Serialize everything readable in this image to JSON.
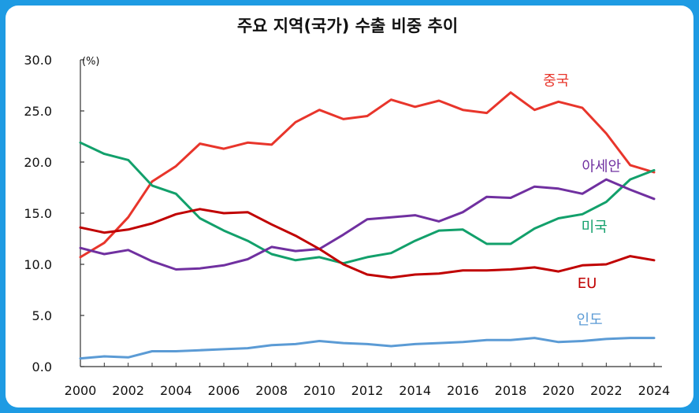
{
  "chart_data": {
    "type": "line",
    "title": "주요 지역(국가) 수출 비중 추이",
    "unit": "(%)",
    "xlabel": "",
    "ylabel": "",
    "ylim": [
      0,
      30
    ],
    "yticks": [
      "30.0",
      "25.0",
      "20.0",
      "15.0",
      "10.0",
      "5.0",
      "0.0"
    ],
    "ytick_values": [
      30,
      25,
      20,
      15,
      10,
      5,
      0
    ],
    "xticks": [
      "2000",
      "2002",
      "2004",
      "2006",
      "2008",
      "2010",
      "2012",
      "2014",
      "2016",
      "2018",
      "2020",
      "2022",
      "2024"
    ],
    "xtick_values": [
      2000,
      2002,
      2004,
      2006,
      2008,
      2010,
      2012,
      2014,
      2016,
      2018,
      2020,
      2022,
      2024
    ],
    "x": [
      2000,
      2001,
      2002,
      2003,
      2004,
      2005,
      2006,
      2007,
      2008,
      2009,
      2010,
      2011,
      2012,
      2013,
      2014,
      2015,
      2016,
      2017,
      2018,
      2019,
      2020,
      2021,
      2022,
      2023,
      2024
    ],
    "grid": false,
    "legend": "inline labels",
    "series": [
      {
        "name": "중국",
        "color": "#e8352b",
        "values": [
          10.7,
          12.1,
          14.6,
          18.1,
          19.6,
          21.8,
          21.3,
          21.9,
          21.7,
          23.9,
          25.1,
          24.2,
          24.5,
          26.1,
          25.4,
          26.0,
          25.1,
          24.8,
          26.8,
          25.1,
          25.9,
          25.3,
          22.8,
          19.7,
          19.0
        ]
      },
      {
        "name": "미국",
        "color": "#12a06b",
        "values": [
          21.9,
          20.8,
          20.2,
          17.7,
          16.9,
          14.5,
          13.3,
          12.3,
          11.0,
          10.4,
          10.7,
          10.1,
          10.7,
          11.1,
          12.3,
          13.3,
          13.4,
          12.0,
          12.0,
          13.5,
          14.5,
          14.9,
          16.1,
          18.3,
          19.2
        ]
      },
      {
        "name": "아세안",
        "color": "#7030a0",
        "values": [
          11.6,
          11.0,
          11.4,
          10.3,
          9.5,
          9.6,
          9.9,
          10.5,
          11.7,
          11.3,
          11.5,
          12.9,
          14.4,
          14.6,
          14.8,
          14.2,
          15.1,
          16.6,
          16.5,
          17.6,
          17.4,
          16.9,
          18.3,
          17.3,
          16.4
        ]
      },
      {
        "name": "EU",
        "color": "#c00000",
        "values": [
          13.6,
          13.1,
          13.4,
          14.0,
          14.9,
          15.4,
          15.0,
          15.1,
          13.9,
          12.8,
          11.5,
          10.0,
          9.0,
          8.7,
          9.0,
          9.1,
          9.4,
          9.4,
          9.5,
          9.7,
          9.3,
          9.9,
          10.0,
          10.8,
          10.4
        ]
      },
      {
        "name": "인도",
        "color": "#5b9bd5",
        "values": [
          0.8,
          1.0,
          0.9,
          1.5,
          1.5,
          1.6,
          1.7,
          1.8,
          2.1,
          2.2,
          2.5,
          2.3,
          2.2,
          2.0,
          2.2,
          2.3,
          2.4,
          2.6,
          2.6,
          2.8,
          2.4,
          2.5,
          2.7,
          2.8,
          2.8
        ]
      }
    ],
    "labels": [
      {
        "text": "중국",
        "color": "#e8352b",
        "x": 2019.9,
        "y": 27.5,
        "size": 18
      },
      {
        "text": "아세안",
        "color": "#7030a0",
        "x": 2021.8,
        "y": 19.1,
        "size": 18
      },
      {
        "text": "미국",
        "color": "#12a06b",
        "x": 2021.5,
        "y": 13.2,
        "size": 18
      },
      {
        "text": "EU",
        "color": "#c00000",
        "x": 2021.2,
        "y": 7.7,
        "size": 15
      },
      {
        "text": "인도",
        "color": "#5b9bd5",
        "x": 2021.3,
        "y": 4.1,
        "size": 18
      }
    ]
  }
}
